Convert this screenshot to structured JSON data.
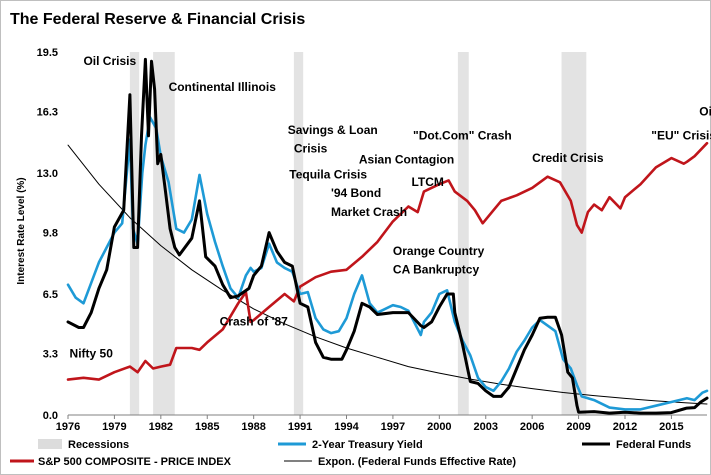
{
  "chart_data": {
    "type": "line",
    "title": "The Federal Reserve & Financial Crisis",
    "ylabel": "Interest Rate Level (%)",
    "xlabel": "",
    "xlim": [
      1976,
      2017.3
    ],
    "ylim": [
      0,
      19.5
    ],
    "yticks": [
      {
        "value": 19.5,
        "label": "19.5"
      },
      {
        "value": 16.3,
        "label": "16.3"
      },
      {
        "value": 13.0,
        "label": "13.0"
      },
      {
        "value": 9.8,
        "label": "9.8"
      },
      {
        "value": 6.5,
        "label": "6.5"
      },
      {
        "value": 3.3,
        "label": "3.3"
      },
      {
        "value": 0.0,
        "label": "0.0"
      }
    ],
    "xticks": [
      {
        "value": 1976,
        "label": "1976"
      },
      {
        "value": 1979,
        "label": "1979"
      },
      {
        "value": 1982,
        "label": "1982"
      },
      {
        "value": 1985,
        "label": "1985"
      },
      {
        "value": 1988,
        "label": "1988"
      },
      {
        "value": 1991,
        "label": "1991"
      },
      {
        "value": 1994,
        "label": "1994"
      },
      {
        "value": 1997,
        "label": "1997"
      },
      {
        "value": 2000,
        "label": "2000"
      },
      {
        "value": 2003,
        "label": "2003"
      },
      {
        "value": 2006,
        "label": "2006"
      },
      {
        "value": 2009,
        "label": "2009"
      },
      {
        "value": 2012,
        "label": "2012"
      },
      {
        "value": 2015,
        "label": "2015"
      }
    ],
    "recessions": [
      [
        1980.0,
        1980.6
      ],
      [
        1981.5,
        1982.9
      ],
      [
        1990.6,
        1991.2
      ],
      [
        2001.2,
        2001.9
      ],
      [
        2007.9,
        2009.5
      ]
    ],
    "series": [
      {
        "name": "S&P 500 COMPOSITE - PRICE INDEX",
        "color": "#c0151b",
        "x": [
          1976.0,
          1977.0,
          1978.0,
          1979.0,
          1980.0,
          1980.5,
          1981.0,
          1981.5,
          1982.0,
          1982.6,
          1983.0,
          1984.0,
          1984.5,
          1985.0,
          1986.0,
          1987.0,
          1987.5,
          1987.8,
          1988.0,
          1989.0,
          1990.0,
          1990.6,
          1991.0,
          1992.0,
          1993.0,
          1994.0,
          1995.0,
          1996.0,
          1997.0,
          1998.0,
          1998.6,
          1999.0,
          2000.0,
          2000.6,
          2001.0,
          2001.8,
          2002.3,
          2002.8,
          2003.5,
          2004.0,
          2005.0,
          2006.0,
          2007.0,
          2007.8,
          2008.5,
          2008.9,
          2009.2,
          2009.6,
          2010.0,
          2010.5,
          2011.0,
          2011.7,
          2012.0,
          2013.0,
          2014.0,
          2015.0,
          2015.8,
          2016.0,
          2016.5,
          2017.3
        ],
        "y": [
          1.9,
          2.0,
          1.9,
          2.3,
          2.6,
          2.3,
          2.9,
          2.5,
          2.6,
          2.7,
          3.6,
          3.6,
          3.5,
          3.9,
          4.6,
          6.0,
          6.6,
          5.0,
          5.1,
          5.8,
          6.5,
          6.1,
          6.9,
          7.4,
          7.7,
          7.8,
          8.5,
          9.3,
          10.4,
          11.2,
          10.9,
          12.0,
          12.4,
          12.6,
          12.0,
          11.5,
          11.0,
          10.3,
          11.0,
          11.5,
          11.8,
          12.2,
          12.8,
          12.5,
          11.5,
          10.2,
          9.8,
          10.9,
          11.3,
          11.0,
          11.7,
          11.1,
          11.7,
          12.4,
          13.3,
          13.8,
          13.5,
          13.6,
          13.9,
          14.6
        ]
      },
      {
        "name": "2-Year Treasury Yield",
        "color": "#1e9ad6",
        "x": [
          1976.0,
          1976.5,
          1977.0,
          1978.0,
          1979.0,
          1979.5,
          1980.0,
          1980.2,
          1980.5,
          1980.8,
          1981.0,
          1981.3,
          1981.7,
          1982.0,
          1982.5,
          1983.0,
          1983.5,
          1984.0,
          1984.5,
          1985.0,
          1985.5,
          1986.0,
          1986.5,
          1987.0,
          1987.5,
          1987.8,
          1988.0,
          1988.5,
          1989.0,
          1989.5,
          1990.0,
          1990.5,
          1991.0,
          1991.5,
          1992.0,
          1992.5,
          1993.0,
          1993.5,
          1994.0,
          1994.5,
          1995.0,
          1995.5,
          1996.0,
          1997.0,
          1997.5,
          1998.0,
          1998.8,
          1999.0,
          1999.5,
          2000.0,
          2000.5,
          2001.0,
          2001.5,
          2002.0,
          2002.5,
          2003.0,
          2003.5,
          2004.0,
          2004.5,
          2005.0,
          2005.5,
          2006.0,
          2006.5,
          2007.0,
          2007.5,
          2008.0,
          2008.5,
          2008.9,
          2009.2,
          2010.0,
          2011.0,
          2012.0,
          2013.0,
          2014.0,
          2015.0,
          2015.5,
          2016.0,
          2016.5,
          2017.0,
          2017.3
        ],
        "y": [
          7.0,
          6.3,
          6.0,
          8.2,
          9.8,
          10.3,
          14.8,
          10.0,
          9.2,
          13.0,
          14.5,
          16.0,
          15.4,
          13.9,
          12.5,
          10.0,
          9.8,
          10.5,
          12.9,
          10.8,
          9.3,
          8.0,
          6.8,
          6.3,
          7.5,
          7.9,
          7.7,
          7.9,
          9.2,
          8.2,
          7.9,
          7.7,
          6.5,
          6.6,
          5.2,
          4.6,
          4.4,
          4.5,
          5.2,
          6.5,
          7.5,
          6.0,
          5.5,
          5.9,
          5.8,
          5.6,
          4.3,
          5.0,
          5.5,
          6.5,
          6.7,
          5.0,
          4.0,
          3.2,
          2.0,
          1.5,
          1.3,
          1.8,
          2.5,
          3.4,
          4.0,
          4.7,
          5.1,
          4.8,
          4.5,
          3.0,
          2.5,
          1.6,
          1.0,
          0.8,
          0.4,
          0.3,
          0.3,
          0.5,
          0.7,
          0.8,
          0.9,
          0.8,
          1.2,
          1.3
        ]
      },
      {
        "name": "Federal Funds",
        "color": "#000000",
        "x": [
          1976.0,
          1976.7,
          1977.0,
          1977.5,
          1978.0,
          1978.5,
          1979.0,
          1979.6,
          1980.0,
          1980.25,
          1980.5,
          1980.75,
          1981.0,
          1981.2,
          1981.4,
          1981.6,
          1981.8,
          1982.0,
          1982.3,
          1982.6,
          1982.9,
          1983.2,
          1984.0,
          1984.5,
          1984.9,
          1985.5,
          1986.0,
          1986.5,
          1987.0,
          1987.7,
          1988.0,
          1988.5,
          1989.0,
          1989.5,
          1990.0,
          1990.5,
          1991.0,
          1991.5,
          1992.0,
          1992.5,
          1993.0,
          1993.7,
          1994.0,
          1994.5,
          1995.0,
          1995.5,
          1996.0,
          1997.0,
          1998.0,
          1998.8,
          1999.0,
          1999.5,
          2000.0,
          2000.5,
          2000.9,
          2001.0,
          2001.5,
          2002.0,
          2002.5,
          2003.0,
          2003.5,
          2004.0,
          2004.5,
          2005.0,
          2005.5,
          2006.0,
          2006.5,
          2007.0,
          2007.5,
          2007.9,
          2008.3,
          2008.6,
          2008.9,
          2009.0,
          2010.0,
          2011.0,
          2012.0,
          2013.0,
          2014.0,
          2015.0,
          2015.9,
          2016.0,
          2016.5,
          2016.9,
          2017.3
        ],
        "y": [
          5.0,
          4.7,
          4.7,
          5.5,
          6.8,
          7.8,
          10.1,
          11.0,
          17.2,
          9.0,
          9.0,
          15.0,
          19.1,
          15.0,
          19.0,
          17.5,
          13.5,
          14.0,
          12.0,
          10.0,
          9.0,
          8.6,
          9.5,
          11.5,
          8.5,
          8.0,
          7.0,
          6.3,
          6.4,
          6.8,
          7.5,
          8.0,
          9.8,
          8.8,
          8.2,
          8.0,
          6.0,
          5.8,
          3.9,
          3.1,
          3.0,
          3.0,
          3.5,
          4.5,
          6.0,
          5.8,
          5.4,
          5.5,
          5.5,
          4.8,
          4.7,
          5.0,
          5.8,
          6.5,
          6.5,
          5.5,
          3.8,
          1.8,
          1.7,
          1.3,
          1.0,
          1.0,
          1.5,
          2.5,
          3.5,
          4.3,
          5.2,
          5.25,
          5.25,
          4.3,
          2.3,
          2.0,
          0.5,
          0.15,
          0.18,
          0.1,
          0.15,
          0.1,
          0.1,
          0.13,
          0.35,
          0.37,
          0.4,
          0.7,
          0.91
        ]
      },
      {
        "name": "Expon. (Federal Funds Effective Rate)",
        "color": "#000000",
        "type": "trendline",
        "x": [
          1976.0,
          1978.0,
          1980.0,
          1982.0,
          1984.0,
          1986.0,
          1988.0,
          1990.0,
          1992.0,
          1994.0,
          1996.0,
          1998.0,
          2000.0,
          2002.0,
          2004.0,
          2006.0,
          2008.0,
          2010.0,
          2012.0,
          2014.0,
          2016.0,
          2017.3
        ],
        "y": [
          14.5,
          12.4,
          10.6,
          9.1,
          7.8,
          6.7,
          5.7,
          4.9,
          4.2,
          3.6,
          3.1,
          2.6,
          2.25,
          1.93,
          1.65,
          1.42,
          1.21,
          1.04,
          0.89,
          0.76,
          0.65,
          0.59
        ]
      }
    ],
    "annotations": [
      {
        "text": "Oil Crisis",
        "x": 1977.0,
        "y": 18.8
      },
      {
        "text": "Continental Illinois",
        "x": 1982.5,
        "y": 17.4
      },
      {
        "text": "Savings & Loan",
        "x": 1990.2,
        "y": 15.1
      },
      {
        "text": "Crisis",
        "x": 1990.6,
        "y": 14.1
      },
      {
        "text": "Tequila Crisis",
        "x": 1990.3,
        "y": 12.7
      },
      {
        "text": "Asian Contagion",
        "x": 1994.8,
        "y": 13.5
      },
      {
        "text": "'94 Bond",
        "x": 1993.0,
        "y": 11.7
      },
      {
        "text": "LTCM",
        "x": 1998.2,
        "y": 12.3
      },
      {
        "text": "Market Crash",
        "x": 1993.0,
        "y": 10.7
      },
      {
        "text": "\"Dot.Com\" Crash",
        "x": 1998.3,
        "y": 14.8
      },
      {
        "text": "Credit Crisis",
        "x": 2006.0,
        "y": 13.6
      },
      {
        "text": "\"EU\" Crisis",
        "x": 2013.7,
        "y": 14.8
      },
      {
        "text": "Oi",
        "x": 2016.8,
        "y": 16.1
      },
      {
        "text": "Orange Country",
        "x": 1997.0,
        "y": 8.6
      },
      {
        "text": "CA Bankruptcy",
        "x": 1997.0,
        "y": 7.6
      },
      {
        "text": "Crash of '87",
        "x": 1985.8,
        "y": 4.8
      },
      {
        "text": "Nifty 50",
        "x": 1976.1,
        "y": 3.1
      }
    ],
    "legend": {
      "position": "bottom",
      "items": [
        {
          "label": "Recessions",
          "kind": "band",
          "color": "#dcdcdc"
        },
        {
          "label": "2-Year Treasury Yield",
          "kind": "line",
          "color": "#1e9ad6"
        },
        {
          "label": "Federal Funds",
          "kind": "line",
          "color": "#000000"
        },
        {
          "label": "S&P 500 COMPOSITE - PRICE INDEX",
          "kind": "line",
          "color": "#c0151b"
        },
        {
          "label": "Expon. (Federal Funds Effective Rate)",
          "kind": "thin-line",
          "color": "#000000"
        }
      ]
    }
  }
}
